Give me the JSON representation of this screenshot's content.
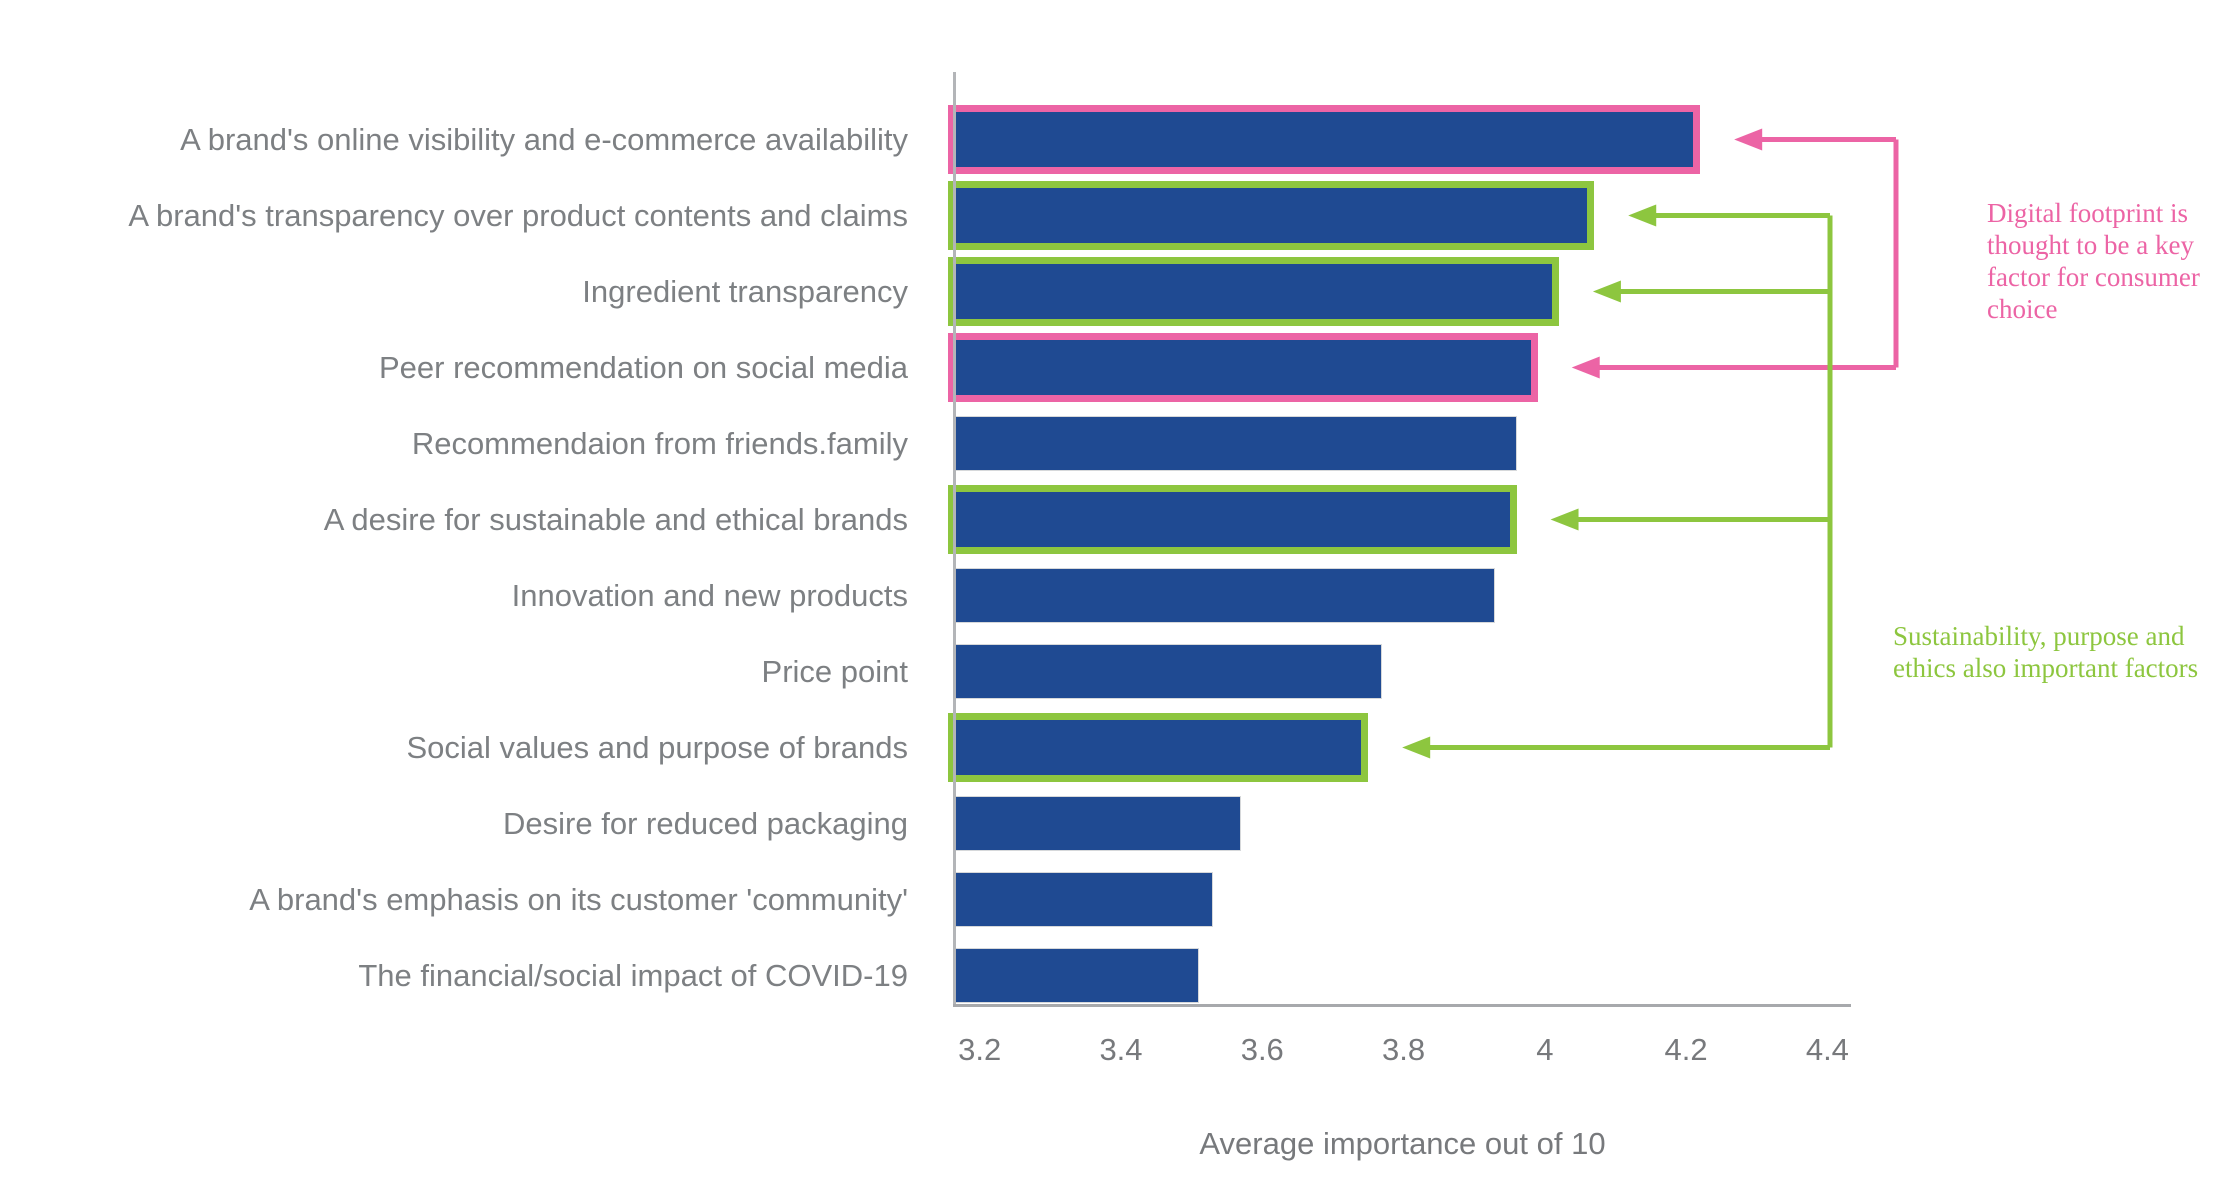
{
  "chart_data": {
    "type": "bar",
    "orientation": "horizontal",
    "title": "",
    "xlabel": "Average importance out of 10",
    "ylabel": "",
    "xlim": [
      3.165,
      4.432
    ],
    "grid": false,
    "x_ticks": [
      {
        "value": 3.2,
        "label": "3.2"
      },
      {
        "value": 3.4,
        "label": "3.4"
      },
      {
        "value": 3.6,
        "label": "3.6"
      },
      {
        "value": 3.8,
        "label": "3.8"
      },
      {
        "value": 4.0,
        "label": "4"
      },
      {
        "value": 4.2,
        "label": "4.2"
      },
      {
        "value": 4.4,
        "label": "4.4"
      }
    ],
    "categories": [
      "A brand's online visibility and e-commerce availability",
      "A brand's transparency over product contents and claims",
      "Ingredient transparency",
      "Peer recommendation on social media",
      "Recommendaion from friends.family",
      "A desire for sustainable and ethical brands",
      "Innovation and new products",
      "Price point",
      "Social values and purpose of brands",
      "Desire for reduced packaging",
      "A brand's emphasis on its customer 'community'",
      "The financial/social impact of COVID-19"
    ],
    "values": [
      4.21,
      4.06,
      4.01,
      3.98,
      3.96,
      3.95,
      3.93,
      3.77,
      3.74,
      3.57,
      3.53,
      3.51
    ],
    "highlights": [
      "pink",
      "green",
      "green",
      "pink",
      "none",
      "green",
      "none",
      "none",
      "green",
      "none",
      "none",
      "none"
    ],
    "annotations": [
      {
        "id": "digital-footprint",
        "text": "Digital footprint is thought to be a key factor for consumer choice",
        "color_name": "pink",
        "target_indices": [
          0,
          3
        ]
      },
      {
        "id": "sustainability",
        "text": "Sustainability, purpose and ethics also important factors",
        "color_name": "green",
        "target_indices": [
          1,
          2,
          5,
          8
        ]
      }
    ],
    "colors": {
      "bar_fill": "#1f4a92",
      "pink": "#ec64a5",
      "green": "#8dc63f",
      "label_gray": "#7d8083",
      "axis_gray": "#a7a9ac"
    }
  }
}
